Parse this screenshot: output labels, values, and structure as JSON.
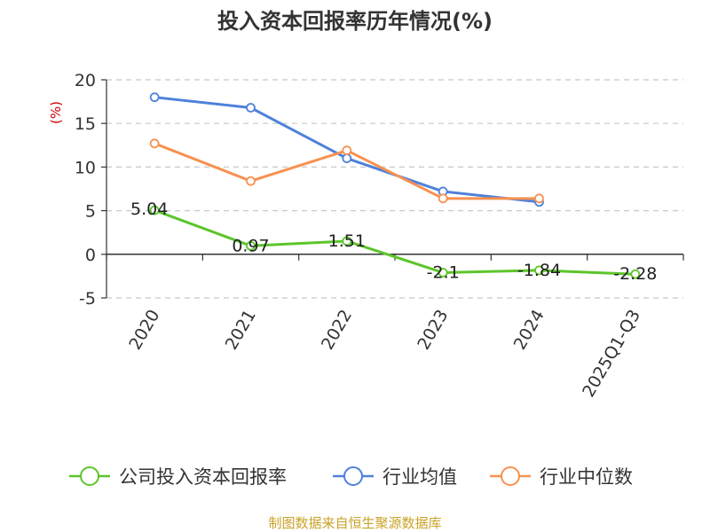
{
  "chart_data": {
    "type": "line",
    "title": "投入资本回报率历年情况(%)",
    "ylabel": "(%)",
    "categories": [
      "2020",
      "2021",
      "2022",
      "2023",
      "2024",
      "2025Q1-Q3"
    ],
    "ylim": [
      -5,
      20
    ],
    "yticks": [
      20,
      15,
      10,
      5,
      0,
      -5
    ],
    "grid": true,
    "legend_position": "bottom",
    "series": [
      {
        "name": "公司投入资本回报率",
        "color": "#5cc52b",
        "values": [
          5.04,
          0.97,
          1.51,
          -2.1,
          -1.84,
          -2.28
        ],
        "labels": [
          "5.04",
          "0.97",
          "1.51",
          "-2.1",
          "-1.84",
          "-2.28"
        ]
      },
      {
        "name": "行业均值",
        "color": "#4f81da",
        "values": [
          18.0,
          16.8,
          11.0,
          7.2,
          6.0,
          null
        ]
      },
      {
        "name": "行业中位数",
        "color": "#f79150",
        "values": [
          12.7,
          8.4,
          11.9,
          6.4,
          6.4,
          null
        ]
      }
    ]
  },
  "source": "制图数据来自恒生聚源数据库"
}
